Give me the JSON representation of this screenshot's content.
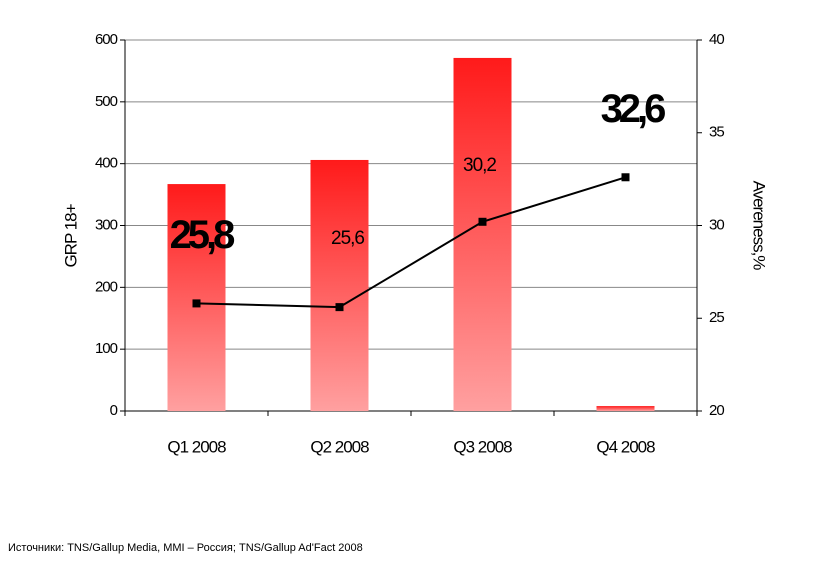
{
  "chart_data": {
    "type": "bar",
    "categories": [
      "Q1 2008",
      "Q2 2008",
      "Q3 2008",
      "Q4 2008"
    ],
    "series": [
      {
        "type": "bar",
        "axis": "y",
        "color": "#ff1a1a",
        "values": [
          367,
          406,
          571,
          8
        ]
      },
      {
        "type": "line",
        "axis": "y2",
        "color": "#000000",
        "values": [
          25.8,
          25.6,
          30.2,
          32.6
        ],
        "value_labels": [
          "25,8",
          "25,6",
          "30,2",
          "32,6"
        ]
      }
    ],
    "ylabel": "GRP 18+",
    "y2label": "Avereness,%",
    "ylim": [
      0,
      600
    ],
    "yticks": [
      0,
      100,
      200,
      300,
      400,
      500,
      600
    ],
    "y2lim": [
      20,
      40
    ],
    "y2ticks": [
      20,
      25,
      30,
      35,
      40
    ],
    "grid": true
  },
  "footnote": "Источники: TNS/Gallup Media, MMI – Россия; TNS/Gallup Ad'Fact  2008"
}
